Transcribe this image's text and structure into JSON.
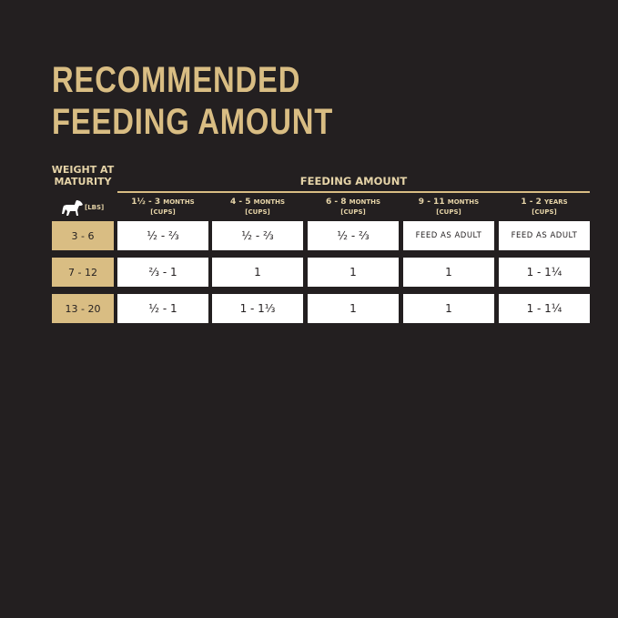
{
  "title": [
    "RECOMMENDED",
    "FEEDING AMOUNT"
  ],
  "weight_header": [
    "WEIGHT AT",
    "MATURITY"
  ],
  "weight_unit": "[LBS]",
  "feeding_header": "FEEDING AMOUNT",
  "columns": [
    {
      "age": "1½ - 3",
      "unit": "MONTHS",
      "cups": "[CUPS]"
    },
    {
      "age": "4 - 5",
      "unit": "MONTHS",
      "cups": "[CUPS]"
    },
    {
      "age": "6 - 8",
      "unit": "MONTHS",
      "cups": "[CUPS]"
    },
    {
      "age": "9 - 11",
      "unit": "MONTHS",
      "cups": "[CUPS]"
    },
    {
      "age": "1 - 2",
      "unit": "YEARS",
      "cups": "[CUPS]"
    }
  ],
  "rows": [
    {
      "weight": "3 - 6",
      "values": [
        "½ - ⅔",
        "½ - ⅔",
        "½ - ⅔",
        "FEED AS ADULT",
        "FEED AS ADULT"
      ]
    },
    {
      "weight": "7 - 12",
      "values": [
        "⅔ - 1",
        "1",
        "1",
        "1",
        "1 - 1¼"
      ]
    },
    {
      "weight": "13 - 20",
      "values": [
        "½ - 1",
        "1 - 1⅓",
        "1",
        "1",
        "1 - 1¼"
      ]
    }
  ],
  "colors": {
    "background": "#231f20",
    "gold": "#d9bd83"
  }
}
